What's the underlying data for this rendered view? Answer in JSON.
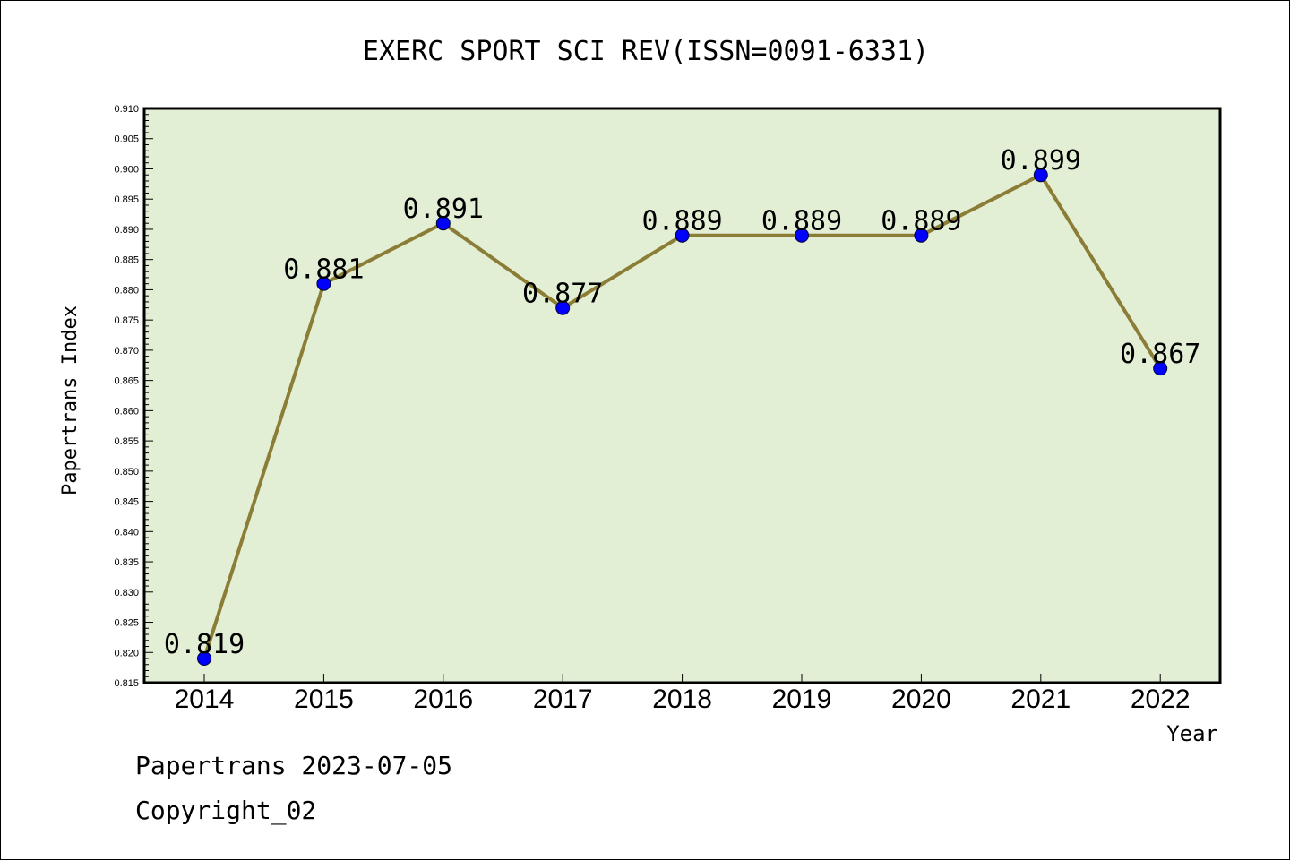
{
  "chart_data": {
    "type": "line",
    "title": "EXERC SPORT SCI REV(ISSN=0091-6331)",
    "xlabel": "Year",
    "ylabel": "Papertrans Index",
    "categories": [
      "2014",
      "2015",
      "2016",
      "2017",
      "2018",
      "2019",
      "2020",
      "2021",
      "2022"
    ],
    "values": [
      0.819,
      0.881,
      0.891,
      0.877,
      0.889,
      0.889,
      0.889,
      0.899,
      0.867
    ],
    "value_labels": [
      "0.819",
      "0.881",
      "0.891",
      "0.877",
      "0.889",
      "0.889",
      "0.889",
      "0.899",
      "0.867"
    ],
    "ylim": [
      0.815,
      0.91
    ],
    "ytick_labels": [
      "0.815",
      "0.820",
      "0.825",
      "0.830",
      "0.835",
      "0.840",
      "0.845",
      "0.850",
      "0.855",
      "0.860",
      "0.865",
      "0.870",
      "0.875",
      "0.880",
      "0.885",
      "0.890",
      "0.895",
      "0.900",
      "0.905",
      "0.910"
    ],
    "grid": false,
    "colors": {
      "plot_background": "#e2efd5",
      "line": "#8b7d36",
      "marker": "#0000ff"
    }
  },
  "footer": {
    "line1": "Papertrans 2023-07-05",
    "line2": "Copyright_02"
  }
}
